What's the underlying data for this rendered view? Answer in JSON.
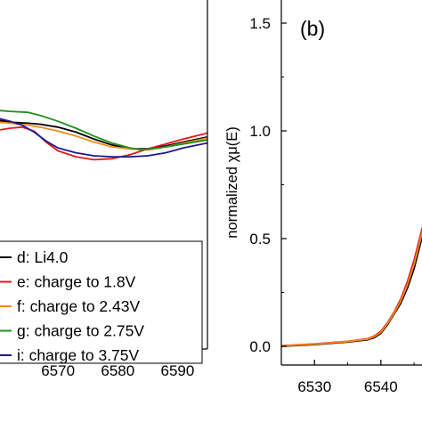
{
  "chart_data": [
    {
      "panel": "a",
      "type": "line",
      "title": "",
      "xlabel": "",
      "ylabel": "",
      "xlim": [
        6560,
        6595
      ],
      "ylim": [
        -0.15,
        1.62
      ],
      "x_ticks": [
        6570,
        6580,
        6590
      ],
      "y_ticks": [],
      "legend_position": "bottom-left",
      "series": [
        {
          "name": "d: Li4.0",
          "color": "#000000",
          "points": [
            [
              6560,
              1.01
            ],
            [
              6562,
              1.0
            ],
            [
              6565,
              0.995
            ],
            [
              6567,
              0.99
            ],
            [
              6570,
              0.975
            ],
            [
              6573,
              0.95
            ],
            [
              6576,
              0.915
            ],
            [
              6579,
              0.885
            ],
            [
              6582,
              0.865
            ],
            [
              6585,
              0.865
            ],
            [
              6588,
              0.88
            ],
            [
              6591,
              0.9
            ],
            [
              6595,
              0.925
            ]
          ]
        },
        {
          "name": "e: charge to 1.8V",
          "color": "#e8141c",
          "points": [
            [
              6560,
              0.96
            ],
            [
              6562,
              0.97
            ],
            [
              6564,
              0.975
            ],
            [
              6566,
              0.955
            ],
            [
              6568,
              0.9
            ],
            [
              6570,
              0.855
            ],
            [
              6573,
              0.825
            ],
            [
              6576,
              0.81
            ],
            [
              6579,
              0.815
            ],
            [
              6582,
              0.835
            ],
            [
              6585,
              0.865
            ],
            [
              6588,
              0.89
            ],
            [
              6591,
              0.915
            ],
            [
              6595,
              0.945
            ]
          ]
        },
        {
          "name": "f: charge to 2.43V",
          "color": "#f28a17",
          "points": [
            [
              6560,
              1.0
            ],
            [
              6562,
              0.995
            ],
            [
              6565,
              0.985
            ],
            [
              6567,
              0.975
            ],
            [
              6570,
              0.955
            ],
            [
              6573,
              0.93
            ],
            [
              6576,
              0.9
            ],
            [
              6579,
              0.875
            ],
            [
              6582,
              0.865
            ],
            [
              6585,
              0.86
            ],
            [
              6588,
              0.875
            ],
            [
              6591,
              0.895
            ],
            [
              6595,
              0.92
            ]
          ]
        },
        {
          "name": "g: charge to 2.75V",
          "color": "#1f8f1f",
          "points": [
            [
              6560,
              1.06
            ],
            [
              6562,
              1.055
            ],
            [
              6565,
              1.05
            ],
            [
              6567,
              1.035
            ],
            [
              6570,
              1.005
            ],
            [
              6573,
              0.97
            ],
            [
              6576,
              0.93
            ],
            [
              6579,
              0.895
            ],
            [
              6582,
              0.87
            ],
            [
              6584,
              0.86
            ],
            [
              6587,
              0.87
            ],
            [
              6590,
              0.885
            ],
            [
              6595,
              0.91
            ]
          ]
        },
        {
          "name": "i: charge to 3.75V",
          "color": "#1a1a8c",
          "points": [
            [
              6560,
              1.02
            ],
            [
              6562,
              1.005
            ],
            [
              6564,
              0.985
            ],
            [
              6566,
              0.95
            ],
            [
              6568,
              0.905
            ],
            [
              6570,
              0.87
            ],
            [
              6573,
              0.845
            ],
            [
              6576,
              0.83
            ],
            [
              6579,
              0.825
            ],
            [
              6582,
              0.825
            ],
            [
              6585,
              0.83
            ],
            [
              6588,
              0.845
            ],
            [
              6591,
              0.87
            ],
            [
              6595,
              0.895
            ]
          ]
        }
      ]
    },
    {
      "panel": "b",
      "panel_label": "(b)",
      "type": "line",
      "title": "",
      "xlabel": "",
      "ylabel": "normalized χμ(E)",
      "xlim": [
        6525,
        6547
      ],
      "ylim": [
        -0.1,
        1.62
      ],
      "x_ticks": [
        6530,
        6540
      ],
      "y_ticks": [
        0.0,
        0.5,
        1.0,
        1.5
      ],
      "y_tick_labels": [
        "0.0",
        "0.5",
        "1.0",
        "1.5"
      ],
      "series": [
        {
          "name": "d: Li4.0",
          "color": "#000000",
          "points": [
            [
              6525,
              0.0
            ],
            [
              6530,
              0.008
            ],
            [
              6535,
              0.02
            ],
            [
              6538,
              0.03
            ],
            [
              6539,
              0.04
            ],
            [
              6540,
              0.06
            ],
            [
              6541,
              0.1
            ],
            [
              6542,
              0.15
            ],
            [
              6543,
              0.2
            ],
            [
              6544,
              0.27
            ],
            [
              6545,
              0.36
            ],
            [
              6546,
              0.48
            ],
            [
              6547,
              0.6
            ]
          ]
        },
        {
          "name": "e: charge to 1.8V",
          "color": "#e8141c",
          "points": [
            [
              6525,
              0.003
            ],
            [
              6530,
              0.011
            ],
            [
              6535,
              0.023
            ],
            [
              6538,
              0.035
            ],
            [
              6539,
              0.048
            ],
            [
              6540,
              0.07
            ],
            [
              6541,
              0.11
            ],
            [
              6542,
              0.16
            ],
            [
              6543,
              0.22
            ],
            [
              6544,
              0.3
            ],
            [
              6545,
              0.4
            ],
            [
              6546,
              0.52
            ],
            [
              6547,
              0.64
            ]
          ]
        },
        {
          "name": "f: charge to 2.43V",
          "color": "#f28a17",
          "points": [
            [
              6525,
              0.002
            ],
            [
              6530,
              0.01
            ],
            [
              6535,
              0.022
            ],
            [
              6538,
              0.033
            ],
            [
              6539,
              0.045
            ],
            [
              6540,
              0.065
            ],
            [
              6541,
              0.105
            ],
            [
              6542,
              0.155
            ],
            [
              6543,
              0.21
            ],
            [
              6544,
              0.285
            ],
            [
              6545,
              0.38
            ],
            [
              6546,
              0.5
            ],
            [
              6547,
              0.62
            ]
          ]
        }
      ]
    }
  ],
  "legend_entries": [
    "d: Li4.0",
    "e: charge to 1.8V",
    "f: charge to 2.43V",
    "g: charge to 2.75V",
    "i: charge to 3.75V"
  ]
}
